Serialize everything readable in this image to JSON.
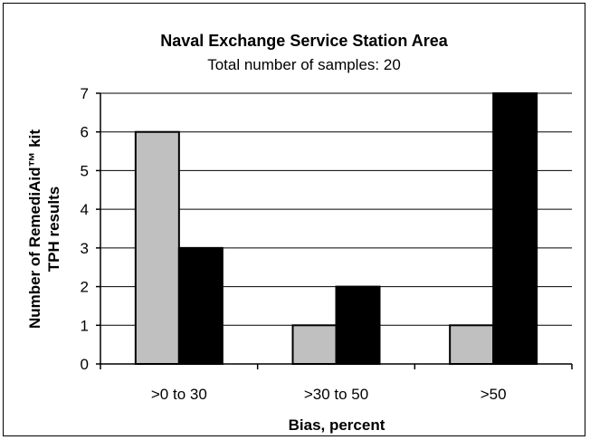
{
  "chart_data": {
    "type": "bar",
    "title": "Naval Exchange Service Station Area",
    "subtitle": "Total number of samples: 20",
    "xlabel": "Bias, percent",
    "ylabel_lines": [
      "Number of RemediAid™ kit",
      "TPH results"
    ],
    "categories": [
      ">0 to 30",
      ">30 to 50",
      ">50"
    ],
    "series": [
      {
        "values": [
          6,
          1,
          1
        ],
        "color": "#c0c0c0"
      },
      {
        "values": [
          3,
          2,
          7
        ],
        "color": "#000000"
      }
    ],
    "ylim": [
      0,
      7
    ],
    "yticks": [
      0,
      1,
      2,
      3,
      4,
      5,
      6,
      7
    ],
    "grid": true,
    "legend": "none"
  }
}
